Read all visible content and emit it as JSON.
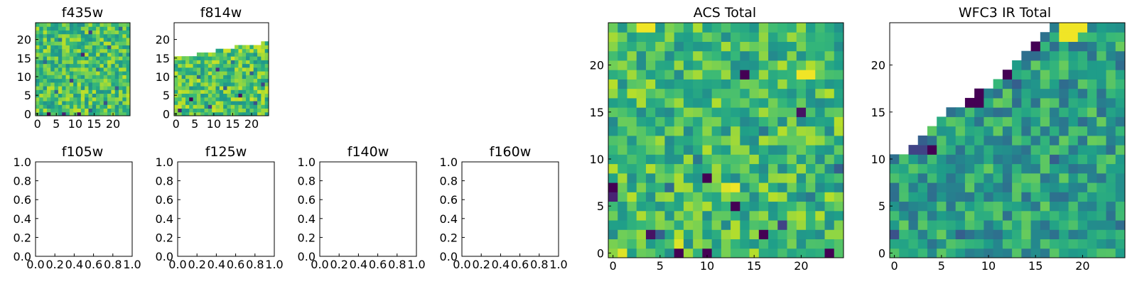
{
  "colors": {
    "colormap": "viridis",
    "background": "#ffffff",
    "frame": "#000000"
  },
  "chart_data": [
    {
      "id": "f435w",
      "type": "heatmap",
      "title": "f435w",
      "xlim": [
        -0.5,
        24.5
      ],
      "ylim": [
        -0.5,
        24.5
      ],
      "xticks": [
        0,
        5,
        10,
        15,
        20
      ],
      "yticks": [
        0,
        5,
        10,
        15,
        20
      ],
      "grid": false,
      "pattern": "full",
      "cols": 25,
      "rows": 25,
      "high_level": 0.7,
      "cells": [
        {
          "x": 3,
          "y": 0,
          "level": 0.0
        },
        {
          "x": 7,
          "y": 0,
          "level": 0.1
        },
        {
          "x": 11,
          "y": 0,
          "level": 0.05
        },
        {
          "x": 14,
          "y": 1,
          "level": 0.3
        },
        {
          "x": 18,
          "y": 3,
          "level": 0.25
        },
        {
          "x": 5,
          "y": 6,
          "level": 0.35
        },
        {
          "x": 21,
          "y": 7,
          "level": 0.3
        },
        {
          "x": 9,
          "y": 9,
          "level": 0.2
        },
        {
          "x": 16,
          "y": 12,
          "level": 0.4
        },
        {
          "x": 2,
          "y": 14,
          "level": 0.35
        },
        {
          "x": 12,
          "y": 16,
          "level": 0.1
        },
        {
          "x": 19,
          "y": 18,
          "level": 0.3
        },
        {
          "x": 6,
          "y": 20,
          "level": 0.4
        },
        {
          "x": 14,
          "y": 22,
          "level": 0.2
        },
        {
          "x": 22,
          "y": 23,
          "level": 0.35
        }
      ]
    },
    {
      "id": "f814w",
      "type": "heatmap",
      "title": "f814w",
      "xlim": [
        -0.5,
        24.5
      ],
      "ylim": [
        -0.5,
        24.5
      ],
      "xticks": [
        0,
        5,
        10,
        15,
        20
      ],
      "yticks": [
        0,
        5,
        10,
        15,
        20
      ],
      "grid": false,
      "pattern": "full",
      "cols": 25,
      "rows": 25,
      "high_level": 0.72,
      "top_row_by_column": [
        15,
        15,
        15,
        15,
        15,
        15,
        16,
        16,
        16,
        16,
        16,
        17,
        17,
        17,
        17,
        17,
        18,
        18,
        18,
        18,
        18,
        18,
        18,
        19,
        19
      ],
      "cells": [
        {
          "x": 1,
          "y": 1,
          "level": 0.1
        },
        {
          "x": 4,
          "y": 4,
          "level": 0.0
        },
        {
          "x": 9,
          "y": 2,
          "level": 0.2
        },
        {
          "x": 13,
          "y": 7,
          "level": 0.3
        },
        {
          "x": 17,
          "y": 5,
          "level": 0.05
        },
        {
          "x": 21,
          "y": 3,
          "level": 0.25
        },
        {
          "x": 6,
          "y": 10,
          "level": 0.35
        },
        {
          "x": 11,
          "y": 12,
          "level": 0.15
        },
        {
          "x": 20,
          "y": 11,
          "level": 0.3
        },
        {
          "x": 15,
          "y": 14,
          "level": 0.4
        },
        {
          "x": 23,
          "y": 8,
          "level": 0.2
        }
      ]
    },
    {
      "id": "f105w",
      "type": "heatmap",
      "title": "f105w",
      "xlim": [
        0,
        1
      ],
      "ylim": [
        0,
        1
      ],
      "xticks": [
        "0.0",
        "0.2",
        "0.4",
        "0.6",
        "0.8",
        "1.0"
      ],
      "yticks": [
        "0.0",
        "0.2",
        "0.4",
        "0.6",
        "0.8",
        "1.0"
      ],
      "grid": false,
      "pattern": "empty"
    },
    {
      "id": "f125w",
      "type": "heatmap",
      "title": "f125w",
      "xlim": [
        0,
        1
      ],
      "ylim": [
        0,
        1
      ],
      "xticks": [
        "0.0",
        "0.2",
        "0.4",
        "0.6",
        "0.8",
        "1.0"
      ],
      "yticks": [
        "0.0",
        "0.2",
        "0.4",
        "0.6",
        "0.8",
        "1.0"
      ],
      "grid": false,
      "pattern": "empty"
    },
    {
      "id": "f140w",
      "type": "heatmap",
      "title": "f140w",
      "xlim": [
        0,
        1
      ],
      "ylim": [
        0,
        1
      ],
      "xticks": [
        "0.0",
        "0.2",
        "0.4",
        "0.6",
        "0.8",
        "1.0"
      ],
      "yticks": [
        "0.0",
        "0.2",
        "0.4",
        "0.6",
        "0.8",
        "1.0"
      ],
      "grid": false,
      "pattern": "empty"
    },
    {
      "id": "f160w",
      "type": "heatmap",
      "title": "f160w",
      "xlim": [
        0,
        1
      ],
      "ylim": [
        0,
        1
      ],
      "xticks": [
        "0.0",
        "0.2",
        "0.4",
        "0.6",
        "0.8",
        "1.0"
      ],
      "yticks": [
        "0.0",
        "0.2",
        "0.4",
        "0.6",
        "0.8",
        "1.0"
      ],
      "grid": false,
      "pattern": "empty"
    },
    {
      "id": "acs_total",
      "type": "heatmap",
      "title": "ACS Total",
      "xlim": [
        -0.5,
        24.5
      ],
      "ylim": [
        -0.5,
        24.5
      ],
      "xticks": [
        0,
        5,
        10,
        15,
        20
      ],
      "yticks": [
        0,
        5,
        10,
        15,
        20
      ],
      "grid": false,
      "pattern": "full",
      "cols": 25,
      "rows": 25,
      "high_level": 0.68,
      "cells": [
        {
          "x": 0,
          "y": 7,
          "level": 0.0
        },
        {
          "x": 7,
          "y": 0,
          "level": 0.0
        },
        {
          "x": 10,
          "y": 0,
          "level": 0.0
        },
        {
          "x": 23,
          "y": 0,
          "level": 0.0
        },
        {
          "x": 4,
          "y": 2,
          "level": 0.05
        },
        {
          "x": 16,
          "y": 2,
          "level": 0.0
        },
        {
          "x": 10,
          "y": 8,
          "level": 0.0
        },
        {
          "x": 13,
          "y": 5,
          "level": 0.0
        },
        {
          "x": 14,
          "y": 19,
          "level": 0.0
        },
        {
          "x": 20,
          "y": 15,
          "level": 0.05
        },
        {
          "x": 0,
          "y": 6,
          "level": 0.1
        },
        {
          "x": 18,
          "y": 3,
          "level": 0.2
        },
        {
          "x": 24,
          "y": 9,
          "level": 0.3
        },
        {
          "x": 5,
          "y": 2,
          "level": 0.3
        },
        {
          "x": 6,
          "y": 7,
          "level": 0.35
        },
        {
          "x": 9,
          "y": 10,
          "level": 0.4
        },
        {
          "x": 16,
          "y": 13,
          "level": 0.4
        },
        {
          "x": 21,
          "y": 6,
          "level": 0.4
        },
        {
          "x": 1,
          "y": 0,
          "level": 0.95
        },
        {
          "x": 3,
          "y": 24,
          "level": 0.98
        },
        {
          "x": 4,
          "y": 24,
          "level": 0.98
        },
        {
          "x": 7,
          "y": 1,
          "level": 0.95
        },
        {
          "x": 12,
          "y": 7,
          "level": 0.95
        },
        {
          "x": 13,
          "y": 7,
          "level": 0.98
        },
        {
          "x": 20,
          "y": 19,
          "level": 0.98
        },
        {
          "x": 21,
          "y": 19,
          "level": 0.98
        }
      ]
    },
    {
      "id": "wfc3_ir_total",
      "type": "heatmap",
      "title": "WFC3 IR Total",
      "xlim": [
        -0.5,
        24.5
      ],
      "ylim": [
        -0.5,
        24.5
      ],
      "xticks": [
        0,
        5,
        10,
        15,
        20
      ],
      "yticks": [
        0,
        5,
        10,
        15,
        20
      ],
      "grid": false,
      "pattern": "full",
      "cols": 25,
      "rows": 25,
      "high_level": 0.56,
      "top_row_by_column": [
        10,
        10,
        11,
        12,
        13,
        14,
        15,
        15,
        16,
        17,
        17,
        18,
        19,
        20,
        21,
        22,
        23,
        24,
        24,
        24,
        24,
        24,
        24,
        24,
        24
      ],
      "cells": [
        {
          "x": 2,
          "y": 11,
          "level": 0.2
        },
        {
          "x": 3,
          "y": 11,
          "level": 0.2
        },
        {
          "x": 3,
          "y": 12,
          "level": 0.3
        },
        {
          "x": 4,
          "y": 11,
          "level": 0.0
        },
        {
          "x": 8,
          "y": 16,
          "level": 0.0
        },
        {
          "x": 9,
          "y": 16,
          "level": 0.0
        },
        {
          "x": 9,
          "y": 17,
          "level": 0.0
        },
        {
          "x": 12,
          "y": 19,
          "level": 0.0
        },
        {
          "x": 15,
          "y": 22,
          "level": 0.0
        },
        {
          "x": 15,
          "y": 23,
          "level": 0.0
        },
        {
          "x": 14,
          "y": 22,
          "level": 0.3
        },
        {
          "x": 13,
          "y": 18,
          "level": 0.3
        },
        {
          "x": 18,
          "y": 24,
          "level": 0.98
        },
        {
          "x": 19,
          "y": 24,
          "level": 0.98
        },
        {
          "x": 20,
          "y": 24,
          "level": 0.98
        },
        {
          "x": 18,
          "y": 23,
          "level": 0.98
        },
        {
          "x": 19,
          "y": 23,
          "level": 0.98
        },
        {
          "x": 12,
          "y": 20,
          "level": 0.95
        },
        {
          "x": 0,
          "y": 2,
          "level": 0.25
        },
        {
          "x": 7,
          "y": 2,
          "level": 0.3
        },
        {
          "x": 17,
          "y": 10,
          "level": 0.3
        }
      ]
    }
  ]
}
